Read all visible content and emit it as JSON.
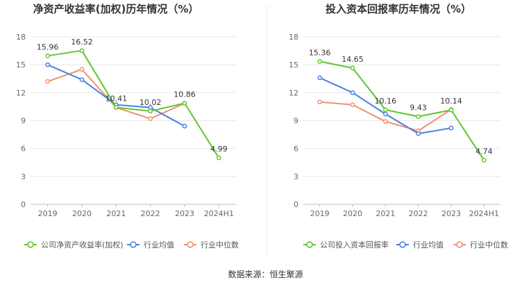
{
  "footer": {
    "source": "数据来源：恒生聚源"
  },
  "colors": {
    "company": "#5ec52f",
    "avg": "#4a7fe0",
    "median": "#f0906e",
    "grid": "#e8e8e8",
    "axis": "#999999"
  },
  "chart_data": [
    {
      "type": "line",
      "title": "净资产收益率(加权)历年情况（%）",
      "categories": [
        "2019",
        "2020",
        "2021",
        "2022",
        "2023",
        "2024H1"
      ],
      "yticks": [
        "0",
        "3",
        "6",
        "9",
        "12",
        "15",
        "18"
      ],
      "ylim": [
        0,
        18
      ],
      "series": [
        {
          "name": "公司净资产收益率(加权)",
          "values": [
            15.96,
            16.52,
            10.41,
            10.02,
            10.86,
            4.99
          ],
          "labels": [
            "15.96",
            "16.52",
            "10.41",
            "10.02",
            "10.86",
            "4.99"
          ]
        },
        {
          "name": "行业均值",
          "values": [
            15.0,
            13.4,
            10.7,
            10.4,
            8.4,
            null
          ]
        },
        {
          "name": "行业中位数",
          "values": [
            13.2,
            14.5,
            10.4,
            9.2,
            10.86,
            null
          ]
        }
      ]
    },
    {
      "type": "line",
      "title": "投入资本回报率历年情况（%）",
      "categories": [
        "2019",
        "2020",
        "2021",
        "2022",
        "2023",
        "2024H1"
      ],
      "yticks": [
        "0",
        "3",
        "6",
        "9",
        "12",
        "15",
        "18"
      ],
      "ylim": [
        0,
        18
      ],
      "series": [
        {
          "name": "公司投入资本回报率",
          "values": [
            15.36,
            14.65,
            10.16,
            9.43,
            10.14,
            4.74
          ],
          "labels": [
            "15.36",
            "14.65",
            "10.16",
            "9.43",
            "10.14",
            "4.74"
          ]
        },
        {
          "name": "行业均值",
          "values": [
            13.6,
            12.0,
            9.7,
            7.6,
            8.2,
            null
          ]
        },
        {
          "name": "行业中位数",
          "values": [
            11.0,
            10.7,
            8.9,
            7.9,
            10.2,
            null
          ]
        }
      ]
    }
  ]
}
